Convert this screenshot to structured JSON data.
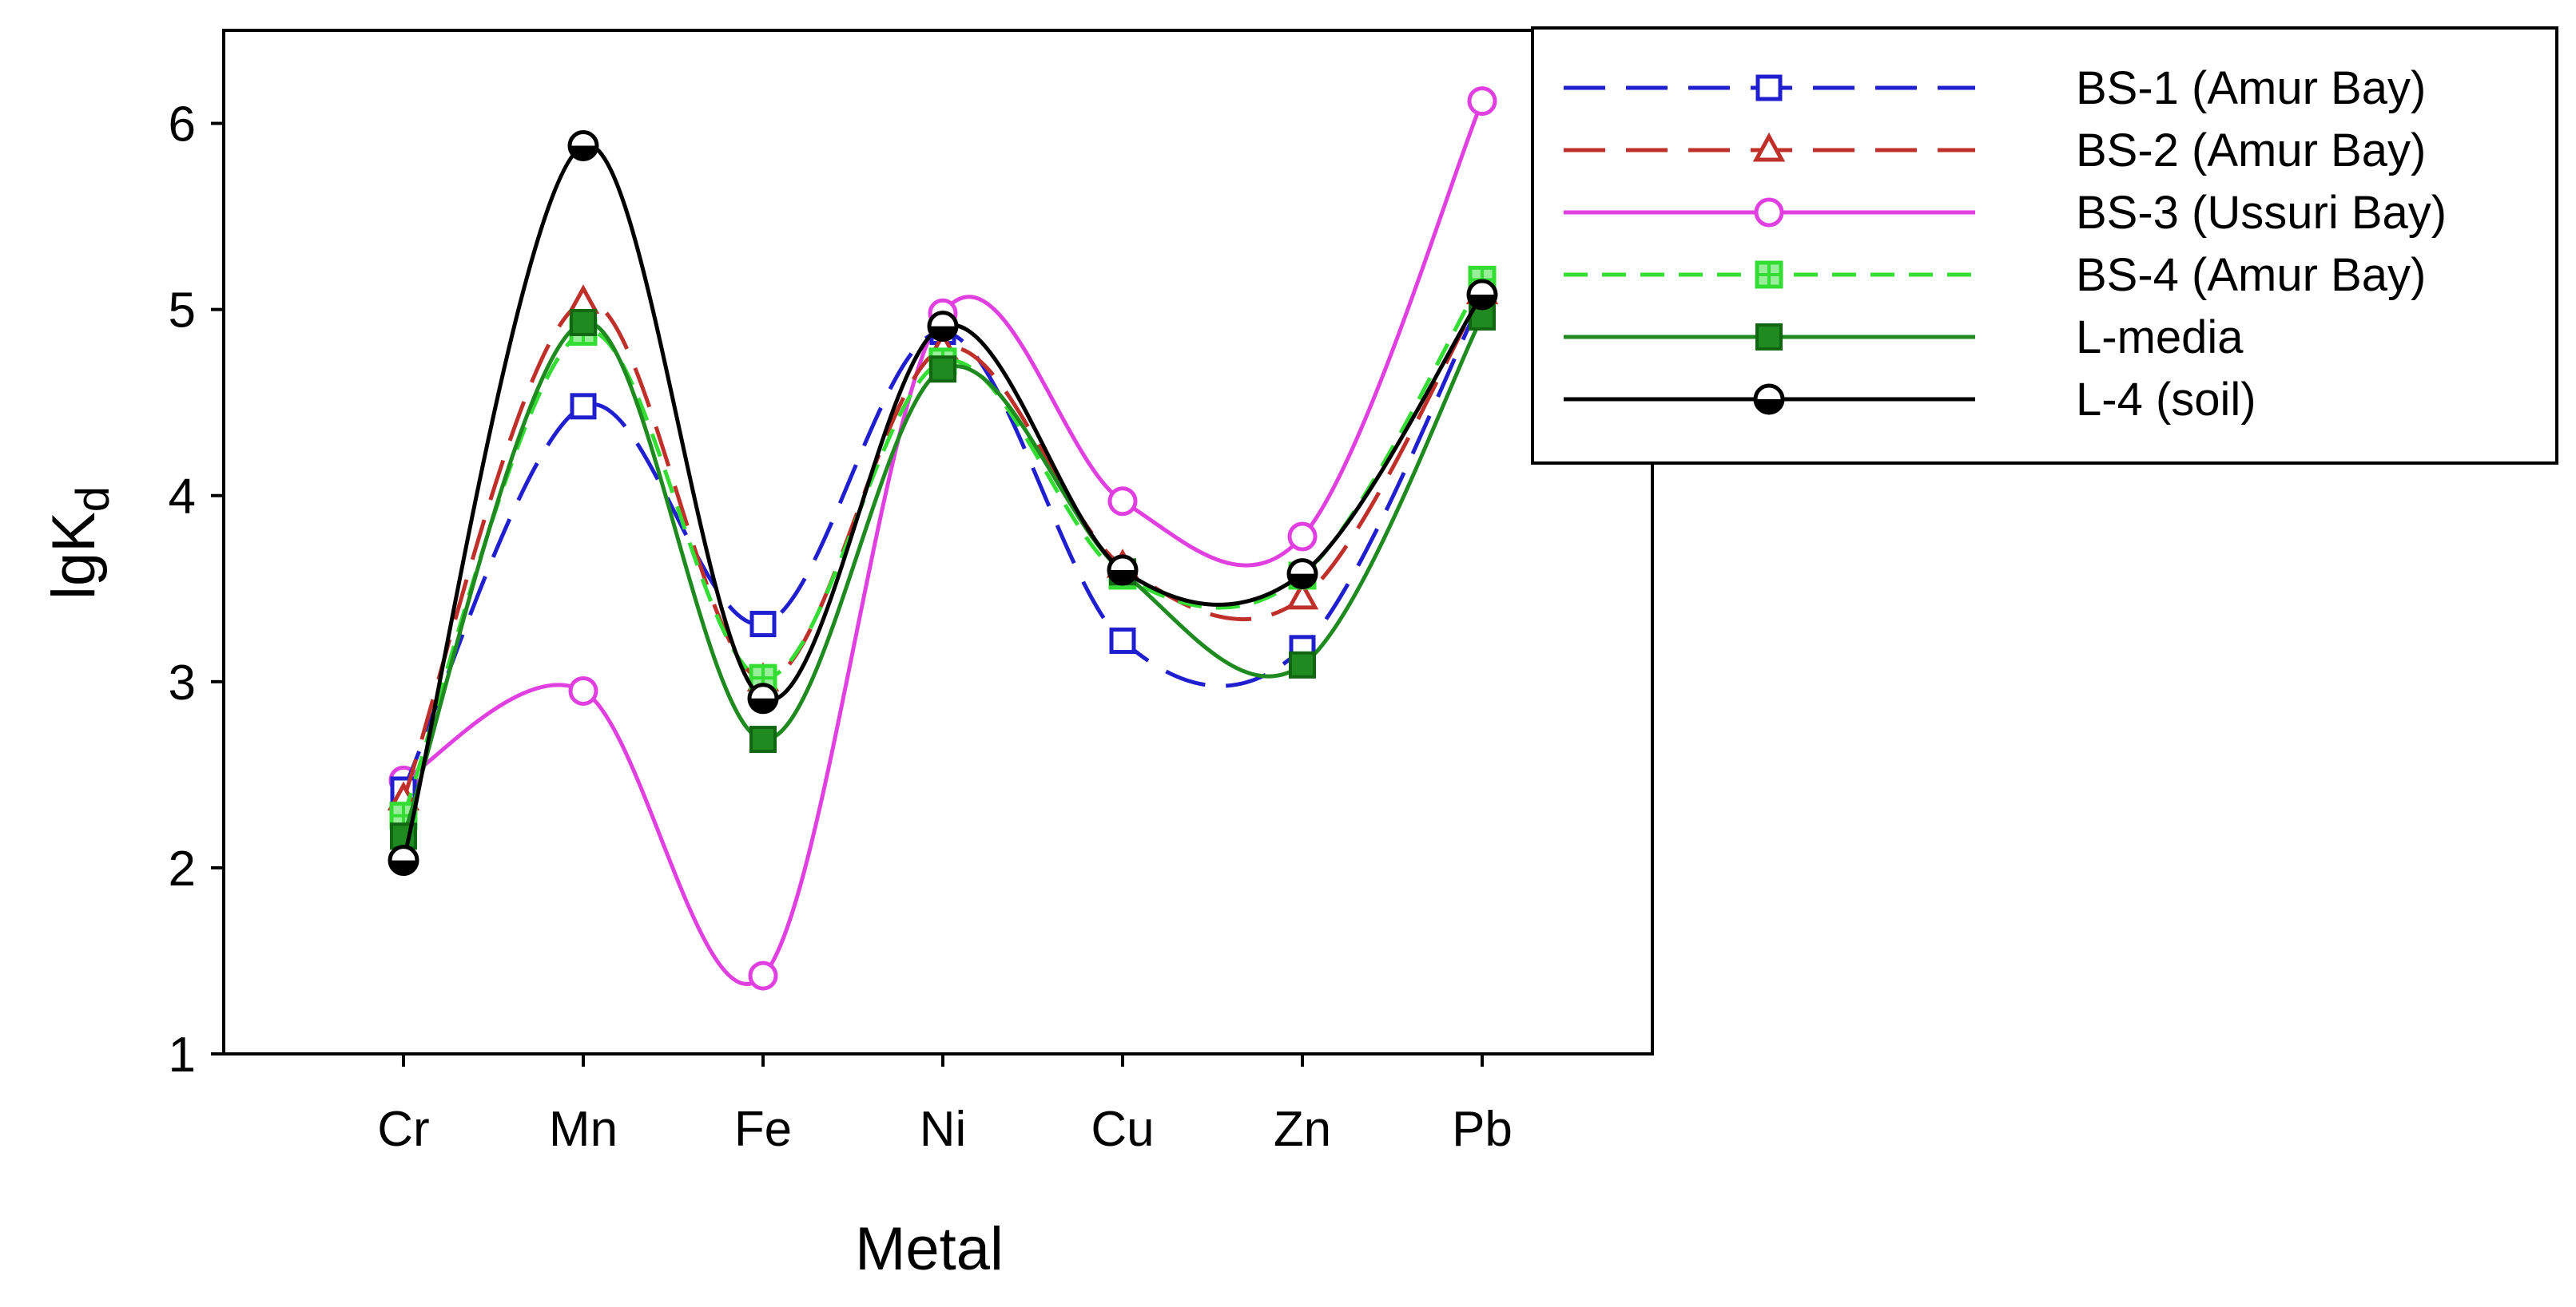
{
  "chart_data": {
    "type": "line",
    "title": "",
    "xlabel": "Metal",
    "ylabel": "lgK",
    "ylabel_subscript": "d",
    "categories": [
      "Cr",
      "Mn",
      "Fe",
      "Ni",
      "Cu",
      "Zn",
      "Pb"
    ],
    "ylim": [
      1,
      6.5
    ],
    "yticks": [
      "1",
      "2",
      "3",
      "4",
      "5",
      "6"
    ],
    "grid": false,
    "legend_position": "top-right",
    "series": [
      {
        "name": "BS-1 (Amur Bay)",
        "color": "#1f1fd0",
        "dash": "long-dash",
        "marker": "square-open",
        "values": [
          2.42,
          4.48,
          3.31,
          4.88,
          3.22,
          3.18,
          5.06
        ]
      },
      {
        "name": "BS-2 (Amur Bay)",
        "color": "#c0302a",
        "dash": "long-dash",
        "marker": "triangle-open",
        "values": [
          2.37,
          5.04,
          3.01,
          4.79,
          3.62,
          3.45,
          5.09
        ]
      },
      {
        "name": "BS-3 (Ussuri Bay)",
        "color": "#e040e0",
        "dash": "solid",
        "marker": "circle-open",
        "values": [
          2.47,
          2.95,
          1.42,
          4.98,
          3.97,
          3.78,
          6.12
        ]
      },
      {
        "name": "BS-4 (Amur Bay)",
        "color": "#33dd33",
        "dash": "short-dash",
        "marker": "square-crossed",
        "values": [
          2.28,
          4.88,
          3.02,
          4.72,
          3.57,
          3.57,
          5.16
        ]
      },
      {
        "name": "L-media",
        "color": "#1f8a1f",
        "dash": "solid",
        "marker": "square-filled",
        "values": [
          2.17,
          4.93,
          2.69,
          4.68,
          3.59,
          3.09,
          4.96
        ]
      },
      {
        "name": "L-4 (soil)",
        "color": "#000000",
        "dash": "solid",
        "marker": "circle-half",
        "values": [
          2.04,
          5.88,
          2.91,
          4.91,
          3.6,
          3.58,
          5.08
        ]
      }
    ]
  }
}
